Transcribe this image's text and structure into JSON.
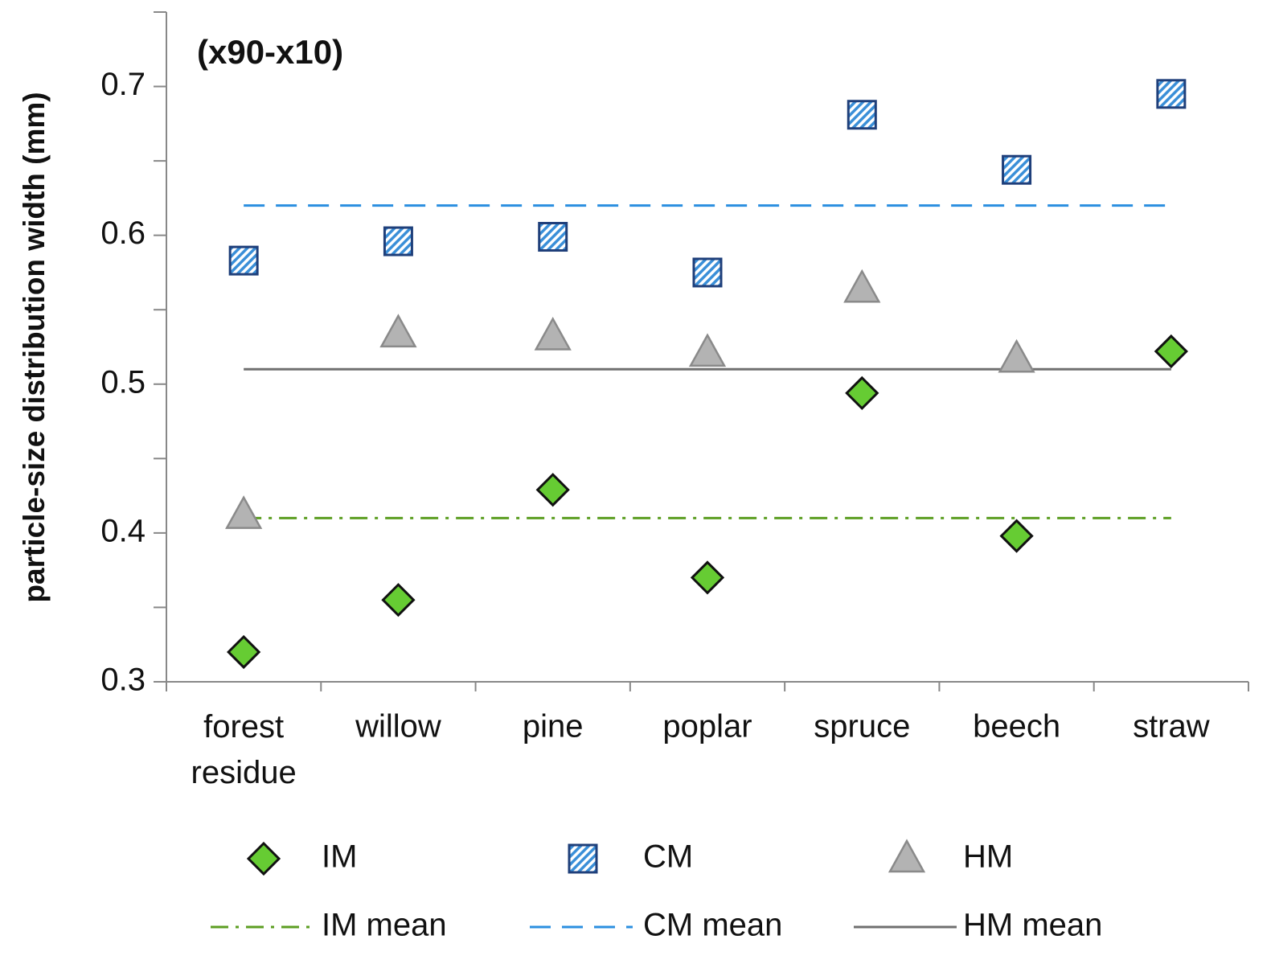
{
  "chart_data": {
    "type": "scatter",
    "annotation": "(x90-x10)",
    "y_label": "particle-size distribution width (mm)",
    "categories": [
      "forest residue",
      "willow",
      "pine",
      "poplar",
      "spruce",
      "beech",
      "straw"
    ],
    "series": [
      {
        "name": "IM",
        "color": "#66cc33",
        "marker": "diamond",
        "values": [
          0.32,
          0.355,
          0.429,
          0.37,
          0.494,
          0.398,
          0.522
        ]
      },
      {
        "name": "CM",
        "color": "#3a8fd8",
        "marker": "square",
        "values": [
          0.583,
          0.596,
          0.599,
          0.575,
          0.681,
          0.644,
          0.695
        ]
      },
      {
        "name": "HM",
        "color": "#b3b3b3",
        "marker": "triangle",
        "values": [
          0.412,
          0.534,
          0.532,
          0.521,
          0.564,
          0.517,
          null
        ]
      }
    ],
    "means": [
      {
        "name": "IM mean",
        "color": "#5c9e22",
        "dash": "dashdot",
        "value": 0.41
      },
      {
        "name": "CM mean",
        "color": "#2b8fe0",
        "dash": "dashed",
        "value": 0.62
      },
      {
        "name": "HM mean",
        "color": "#707070",
        "dash": "solid",
        "value": 0.51
      }
    ],
    "ylim": [
      0.3,
      0.75
    ],
    "yticks": [
      0.3,
      0.4,
      0.5,
      0.6,
      0.7
    ],
    "yticks_minor": [
      0.35,
      0.45,
      0.55,
      0.65,
      0.75
    ]
  }
}
